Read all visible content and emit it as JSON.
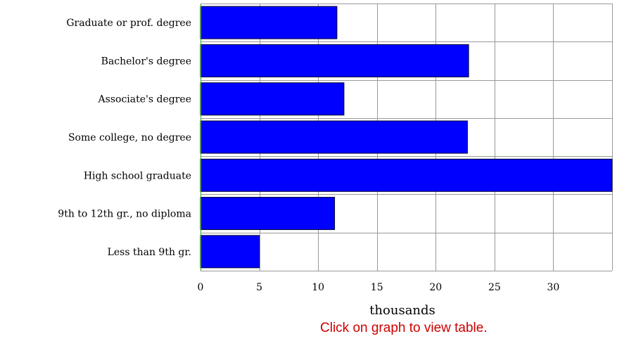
{
  "chart_data": {
    "type": "bar",
    "orientation": "horizontal",
    "categories": [
      "Graduate or prof. degree",
      "Bachelor's degree",
      "Associate's degree",
      "Some college, no degree",
      "High school graduate",
      "9th to 12th gr., no diploma",
      "Less than 9th gr."
    ],
    "values": [
      11.6,
      22.8,
      12.2,
      22.7,
      35.0,
      11.4,
      5.0
    ],
    "xlabel": "thousands",
    "x_ticks": [
      0,
      5,
      10,
      15,
      20,
      25,
      30
    ],
    "xlim": [
      0,
      35
    ],
    "grid": true,
    "bar_color": "#0000ff"
  },
  "note": "Click on graph to view table."
}
